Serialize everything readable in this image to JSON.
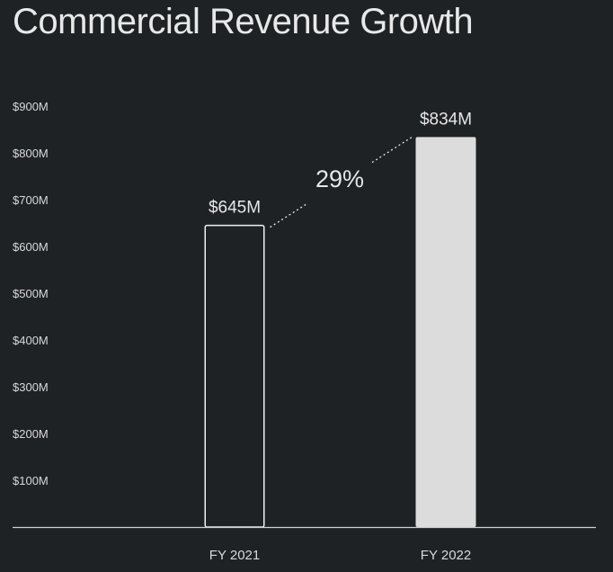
{
  "chart_data": {
    "type": "bar",
    "title": "Commercial Revenue Growth",
    "categories": [
      "FY 2021",
      "FY 2022"
    ],
    "values": [
      645,
      834
    ],
    "value_labels": [
      "$645M",
      "$834M"
    ],
    "bar_styles": [
      "outline",
      "filled"
    ],
    "ylim": [
      0,
      900
    ],
    "yticks": [
      100,
      200,
      300,
      400,
      500,
      600,
      700,
      800,
      900
    ],
    "ytick_labels": [
      "$100M",
      "$200M",
      "$300M",
      "$400M",
      "$500M",
      "$600M",
      "$700M",
      "$800M",
      "$900M"
    ],
    "xlabel": "",
    "ylabel": "",
    "grid": false,
    "annotation": {
      "text": "29%",
      "type": "growth-connector"
    }
  },
  "colors": {
    "background": "#1f2225",
    "text": "#e6e6e6",
    "bar_fill": "#dcdcdc",
    "bar_outline": "#f0f0f0",
    "axis": "#d0d0d0"
  }
}
